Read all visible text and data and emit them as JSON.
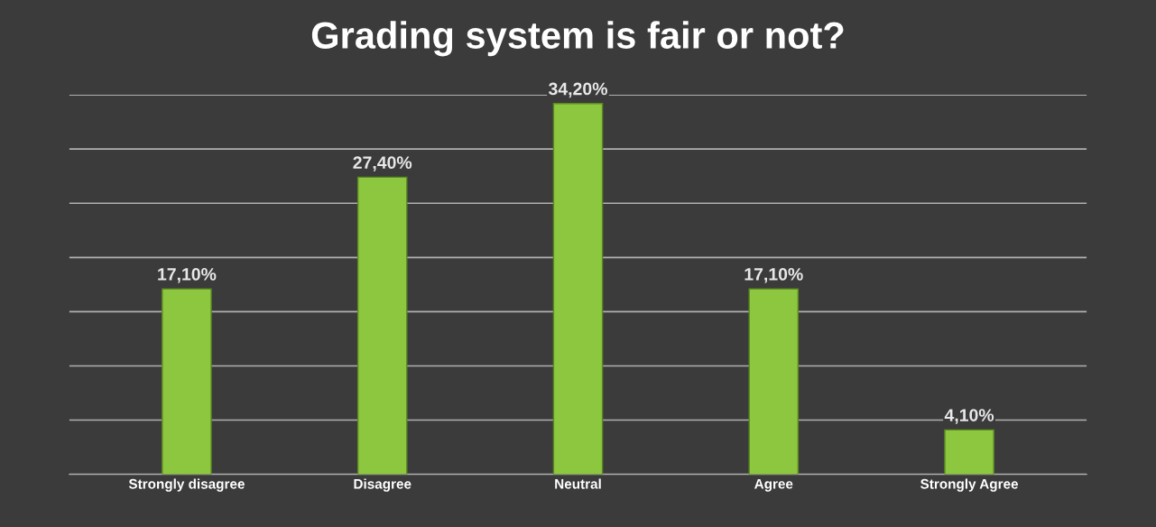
{
  "chart_data": {
    "type": "bar",
    "title": "Grading system is fair or not?",
    "categories": [
      "Strongly disagree",
      "Disagree",
      "Neutral",
      "Agree",
      "Strongly Agree"
    ],
    "values": [
      17.1,
      27.4,
      34.2,
      17.1,
      4.1
    ],
    "value_labels": [
      "17,10%",
      "27,40%",
      "34,20%",
      "17,10%",
      "4,10%"
    ],
    "color": "#8dc63f",
    "ylim": [
      0,
      35
    ],
    "yticks": [
      {
        "value": 0,
        "label": null
      },
      {
        "value": 5,
        "label": null
      },
      {
        "value": 10,
        "label": null
      },
      {
        "value": 15,
        "label": null
      },
      {
        "value": 20,
        "label": null
      },
      {
        "value": 25,
        "label": null
      },
      {
        "value": 30,
        "label": null
      },
      {
        "value": 35,
        "label": null
      }
    ],
    "tick_labels": "x",
    "grid": "y",
    "legend": false
  }
}
